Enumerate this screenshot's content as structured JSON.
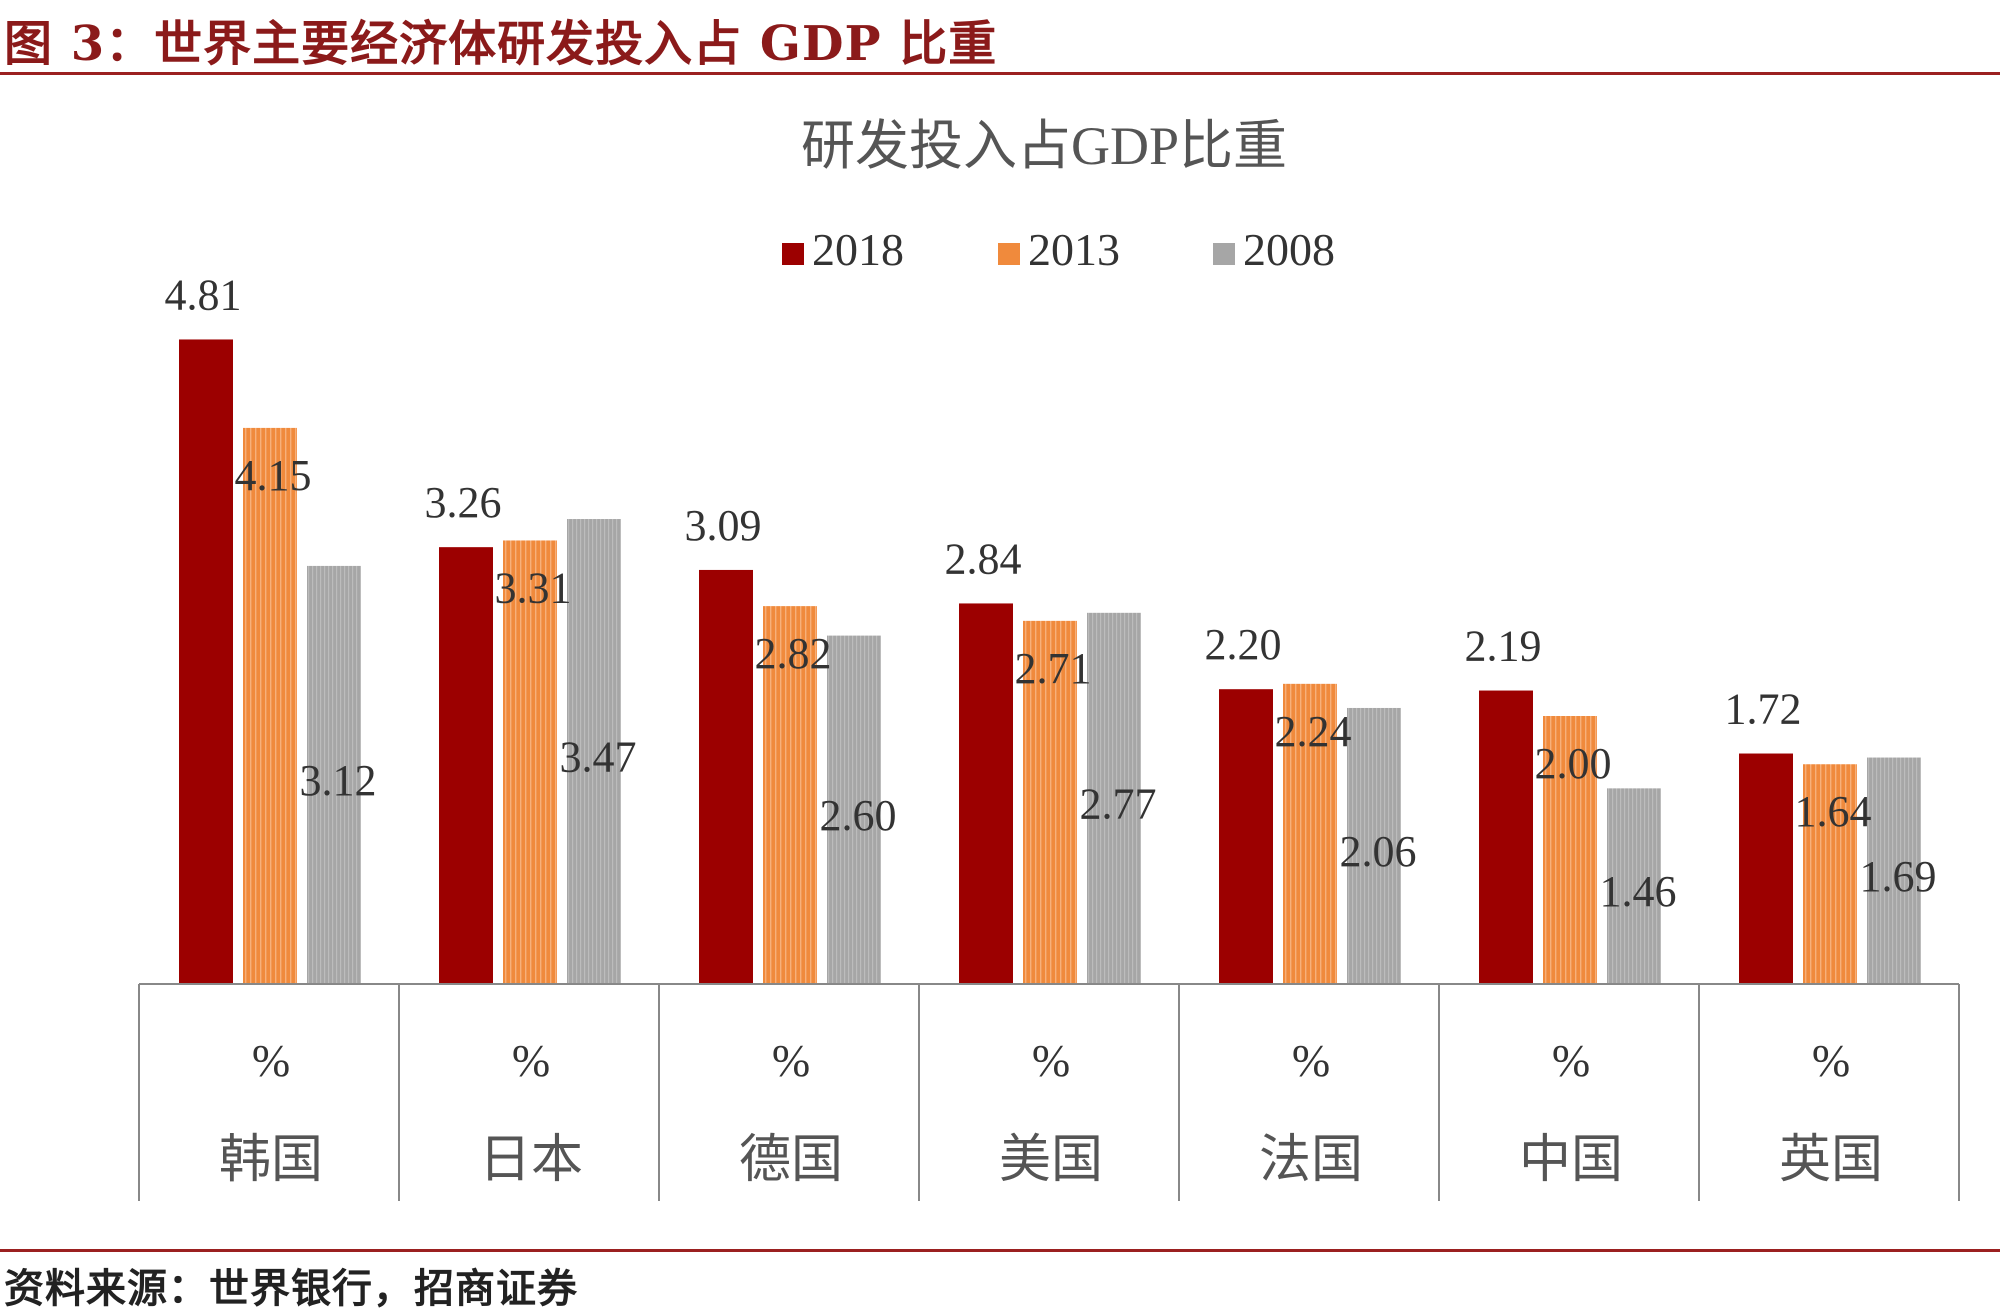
{
  "figure": {
    "title": "图 3：世界主要经济体研发投入占 GDP 比重",
    "source": "资料来源：世界银行，招商证券"
  },
  "colors": {
    "accent": "#8b1a1a",
    "s2018": "#9c0000",
    "s2013": "#f08a3c",
    "s2008": "#a6a6a6"
  },
  "chart_data": {
    "type": "bar",
    "title": "研发投入占GDP比重",
    "categories": [
      "韩国",
      "日本",
      "德国",
      "美国",
      "法国",
      "中国",
      "英国"
    ],
    "unit_label": "%",
    "series": [
      {
        "name": "2018",
        "values": [
          4.81,
          3.26,
          3.09,
          2.84,
          2.2,
          2.19,
          1.72
        ]
      },
      {
        "name": "2013",
        "values": [
          4.15,
          3.31,
          2.82,
          2.71,
          2.24,
          2.0,
          1.64
        ]
      },
      {
        "name": "2008",
        "values": [
          3.12,
          3.47,
          2.6,
          2.77,
          2.06,
          1.46,
          1.69
        ]
      }
    ],
    "legend_position": "top",
    "ylim": [
      0,
      5
    ],
    "grid": false,
    "y_axis_visible": false
  }
}
